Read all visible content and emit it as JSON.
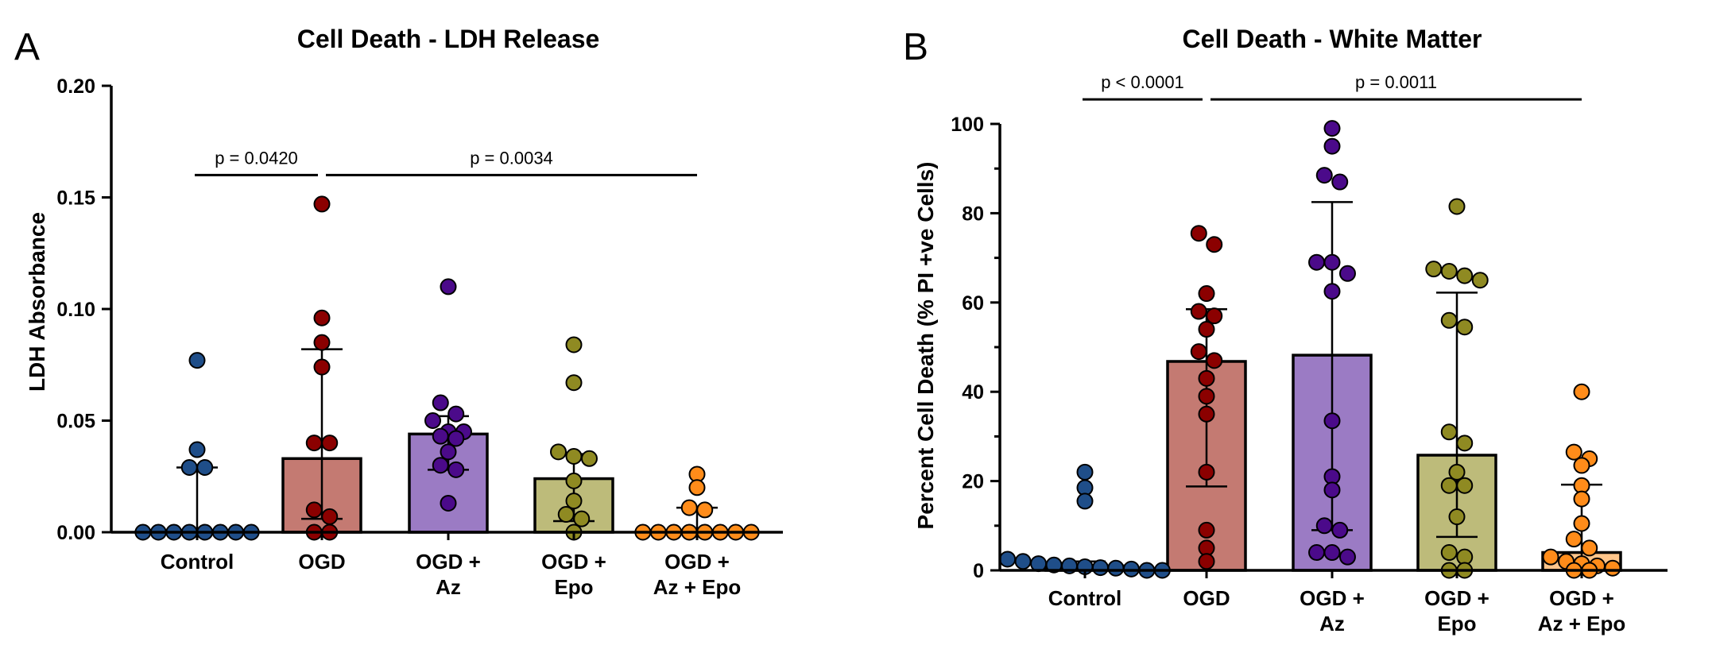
{
  "chart_data": [
    {
      "panel": "A",
      "type": "bar",
      "title": "Cell Death - LDH Release",
      "ylabel": "LDH Absorbance",
      "xlabel": "",
      "ylim": [
        0,
        0.2
      ],
      "yticks": [
        0.0,
        0.05,
        0.1,
        0.15,
        0.2
      ],
      "ytick_labels": [
        "0.00",
        "0.05",
        "0.10",
        "0.15",
        "0.20"
      ],
      "grid": false,
      "categories": [
        {
          "lines": [
            "Control"
          ]
        },
        {
          "lines": [
            "OGD"
          ]
        },
        {
          "lines": [
            "OGD +",
            "Az"
          ]
        },
        {
          "lines": [
            "OGD +",
            "Epo"
          ]
        },
        {
          "lines": [
            "OGD +",
            "Az + Epo"
          ]
        }
      ],
      "groups": [
        {
          "bar": 0.0,
          "err_low": 0.0,
          "err_high": 0.029,
          "color": "#1f4e89",
          "fill": "#1f4e89",
          "points": [
            0,
            0,
            0,
            0,
            0,
            0,
            0,
            0,
            0.029,
            0.029,
            0.037,
            0.077
          ]
        },
        {
          "bar": 0.033,
          "err_low": 0.006,
          "err_high": 0.082,
          "color": "#8b0000",
          "fill": "#c47a72",
          "points": [
            0,
            0,
            0.007,
            0.01,
            0.04,
            0.04,
            0.074,
            0.085,
            0.096,
            0.147
          ]
        },
        {
          "bar": 0.044,
          "err_low": 0.028,
          "err_high": 0.052,
          "color": "#4b0a8a",
          "fill": "#9b7bc4",
          "points": [
            0.013,
            0.028,
            0.03,
            0.036,
            0.042,
            0.043,
            0.045,
            0.045,
            0.05,
            0.053,
            0.058,
            0.11
          ]
        },
        {
          "bar": 0.024,
          "err_low": 0.005,
          "err_high": 0.035,
          "color": "#8f8a22",
          "fill": "#bdbb7a",
          "points": [
            0,
            0.006,
            0.008,
            0.014,
            0.023,
            0.033,
            0.034,
            0.036,
            0.067,
            0.084
          ]
        },
        {
          "bar": 0.0,
          "err_low": 0.0,
          "err_high": 0.011,
          "color": "#ff8c1a",
          "fill": "#ffc58a",
          "points": [
            0,
            0,
            0,
            0,
            0,
            0,
            0,
            0,
            0.01,
            0.011,
            0.02,
            0.026
          ]
        }
      ],
      "comparisons": [
        {
          "from": 0,
          "to": 1,
          "label": "p = 0.0420",
          "y": 0.16
        },
        {
          "from": 1,
          "to": 4,
          "label": "p = 0.0034",
          "y": 0.16
        }
      ]
    },
    {
      "panel": "B",
      "type": "bar",
      "title": "Cell Death - White Matter",
      "ylabel": "Percent Cell Death (% PI +ve Cells)",
      "xlabel": "",
      "ylim": [
        0,
        100
      ],
      "yticks": [
        0,
        20,
        40,
        60,
        80,
        100
      ],
      "ytick_labels": [
        "0",
        "20",
        "40",
        "60",
        "80",
        "100"
      ],
      "grid": false,
      "categories": [
        {
          "lines": [
            "Control"
          ]
        },
        {
          "lines": [
            "OGD"
          ]
        },
        {
          "lines": [
            "OGD +",
            "Az"
          ]
        },
        {
          "lines": [
            "OGD +",
            "Epo"
          ]
        },
        {
          "lines": [
            "OGD +",
            "Az + Epo"
          ]
        }
      ],
      "groups": [
        {
          "bar": 1.0,
          "err_low": 0.3,
          "err_high": 2.0,
          "color": "#1f4e89",
          "fill": "#1f4e89",
          "points": [
            0,
            0,
            0.3,
            0.5,
            0.6,
            0.8,
            1.0,
            1.2,
            1.5,
            2.0,
            2.5,
            15.5,
            18.5,
            22.0
          ]
        },
        {
          "bar": 46.8,
          "err_low": 18.8,
          "err_high": 58.5,
          "color": "#8b0000",
          "fill": "#c47a72",
          "points": [
            2,
            5,
            9,
            22,
            35,
            39,
            43,
            47,
            49,
            54,
            57,
            58,
            62,
            73,
            75.5
          ]
        },
        {
          "bar": 48.2,
          "err_low": 9.0,
          "err_high": 82.5,
          "color": "#4b0a8a",
          "fill": "#9b7bc4",
          "points": [
            3,
            4,
            4,
            9,
            10,
            18,
            21,
            33.5,
            62.5,
            66.5,
            69,
            69,
            87,
            88.5,
            95,
            99
          ]
        },
        {
          "bar": 25.8,
          "err_low": 7.5,
          "err_high": 62.2,
          "color": "#8f8a22",
          "fill": "#bdbb7a",
          "points": [
            0,
            0,
            3,
            4,
            12,
            19,
            19,
            22,
            28.5,
            31,
            54.5,
            56,
            65,
            66,
            67,
            67.5,
            81.5
          ]
        },
        {
          "bar": 4.0,
          "err_low": 0.0,
          "err_high": 19.2,
          "color": "#ff8c1a",
          "fill": "#ffc58a",
          "points": [
            0,
            0,
            0.5,
            1,
            1.5,
            2,
            3,
            5,
            7,
            10.5,
            16,
            19,
            23.5,
            25,
            26.5,
            40
          ]
        }
      ],
      "comparisons": [
        {
          "from": 0,
          "to": 1,
          "label": "p < 0.0001",
          "y": 105.5
        },
        {
          "from": 1,
          "to": 4,
          "label": "p = 0.0011",
          "y": 105.5
        }
      ]
    }
  ]
}
